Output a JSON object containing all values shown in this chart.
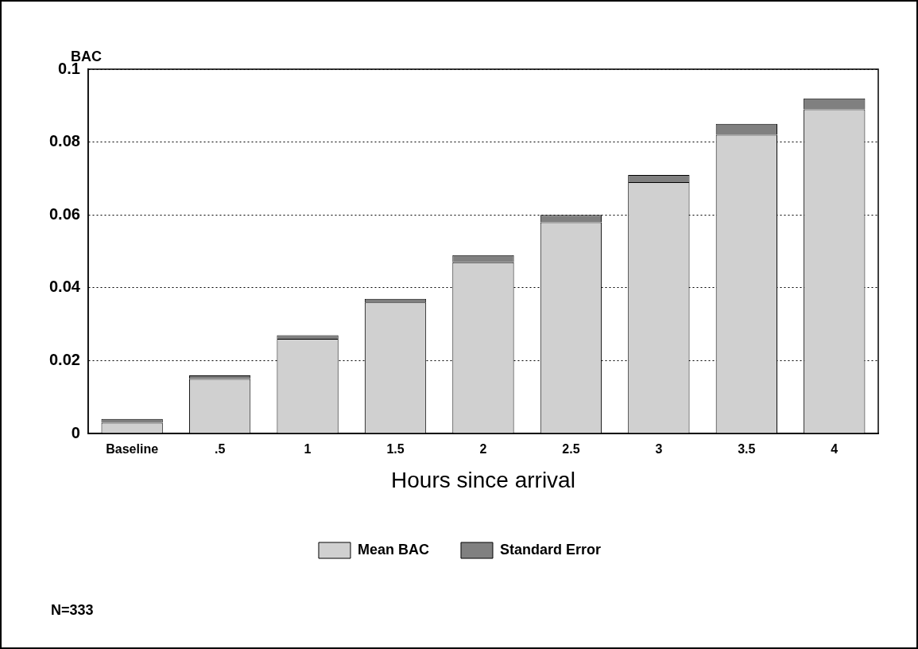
{
  "chart_data": {
    "type": "bar",
    "stacked": true,
    "ylabel": "BAC",
    "xlabel": "Hours since arrival",
    "categories": [
      "Baseline",
      ".5",
      "1",
      "1.5",
      "2",
      "2.5",
      "3",
      "3.5",
      "4"
    ],
    "series": [
      {
        "name": "Mean BAC",
        "color": "#d0d0d0",
        "values": [
          0.003,
          0.015,
          0.026,
          0.036,
          0.047,
          0.058,
          0.069,
          0.082,
          0.089
        ]
      },
      {
        "name": "Standard Error",
        "color": "#808080",
        "values": [
          0.001,
          0.001,
          0.001,
          0.001,
          0.002,
          0.002,
          0.002,
          0.003,
          0.003
        ]
      }
    ],
    "ylim": [
      0,
      0.1
    ],
    "yticks": [
      0,
      0.02,
      0.04,
      0.06,
      0.08,
      0.1
    ],
    "grid": "y",
    "legend": "bottom",
    "annotations": [
      "N=333"
    ]
  }
}
